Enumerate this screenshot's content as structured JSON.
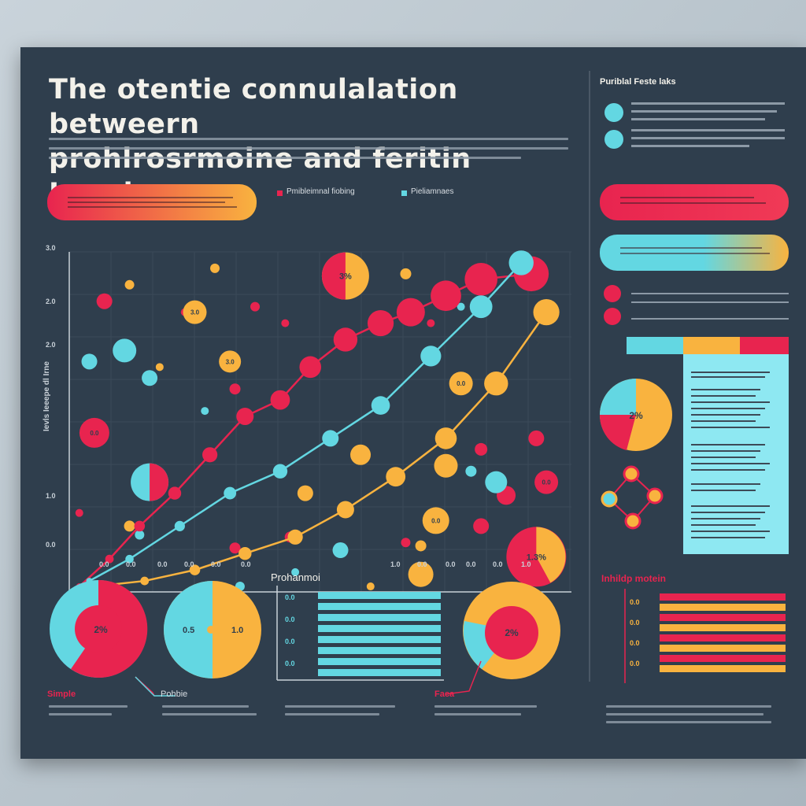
{
  "title": "THE OTENTIE CONNULALATION BETWEERN PROHLROSRMOINE AND FERITIN LEVELS",
  "title_lines": [
    "The otentie connulalation betweern",
    "prohlrosrmoine and feritin Levels"
  ],
  "legend": {
    "series1": "Pmibleimnal fiobing",
    "series2": "Pieliamnaes"
  },
  "y_ticks": [
    "3.0",
    "2.0",
    "2.0",
    "1.0",
    "0.0"
  ],
  "y_axis_label": "Ievls Ieeepe dl Irne",
  "x_ticks": [
    "0.0",
    "0.0",
    "0.0",
    "0.0",
    "0.0",
    "0.0",
    "1.0",
    "0.0",
    "0.0",
    "0.0",
    "0.0",
    "1.0"
  ],
  "x_axis_label": "Prohanmoi",
  "side_panel": {
    "title": "Puriblal Feste laks",
    "pie_label": "2%"
  },
  "bubble_labels": {
    "b1": "3.0",
    "b2": "3.0",
    "b3": "0.0",
    "b4": "0.0",
    "b5": "0.0",
    "b6": "0.0",
    "b7": "0.0"
  },
  "pie_labels": {
    "top_pie": "3%",
    "right_pie": "1.3%"
  },
  "hbar_panel": {
    "title": "Inhildp motein",
    "labels": [
      "0.0",
      "0.0",
      "0.0",
      "0.0"
    ]
  },
  "center_hbar": {
    "labels": [
      "0.0",
      "0.0",
      "0.0",
      "0.0"
    ]
  },
  "bottom": {
    "pie1_label": "2%",
    "pie2_left": "0.5",
    "pie2_right": "1.0",
    "pie3_label": "2%",
    "caption1": "Simple",
    "caption2": "Pohbie",
    "caption3": "Faca"
  },
  "colors": {
    "red": "#e8244f",
    "orange": "#f9b33f",
    "cyan": "#63d7e2",
    "bg": "#2f3e4d"
  },
  "chart_data": {
    "type": "scatter",
    "title": "The otentie connulalation betweern prohlrosrmoine and feritin Levels",
    "xlabel": "Prohanmoi",
    "ylabel": "Ievls Ieeepe dl Irne",
    "series": [
      {
        "name": "Pmibleimnal fiobing",
        "color": "#e8244f",
        "x": [
          0.02,
          0.08,
          0.14,
          0.21,
          0.28,
          0.35,
          0.42,
          0.48,
          0.55,
          0.62,
          0.68,
          0.75,
          0.82,
          0.92
        ],
        "y": [
          0.05,
          0.3,
          0.6,
          0.9,
          1.25,
          1.6,
          1.75,
          2.05,
          2.3,
          2.45,
          2.55,
          2.7,
          2.85,
          2.9
        ]
      },
      {
        "name": "Pieliamnaes",
        "color": "#63d7e2",
        "x": [
          0.04,
          0.12,
          0.22,
          0.32,
          0.42,
          0.52,
          0.62,
          0.72,
          0.82,
          0.9
        ],
        "y": [
          0.1,
          0.3,
          0.6,
          0.9,
          1.1,
          1.4,
          1.7,
          2.15,
          2.6,
          3.0
        ]
      },
      {
        "name": "",
        "color": "#f9b33f",
        "x": [
          0.05,
          0.15,
          0.25,
          0.35,
          0.45,
          0.55,
          0.65,
          0.75,
          0.85,
          0.95
        ],
        "y": [
          0.05,
          0.1,
          0.2,
          0.35,
          0.5,
          0.75,
          1.05,
          1.4,
          1.9,
          2.55
        ]
      }
    ]
  }
}
